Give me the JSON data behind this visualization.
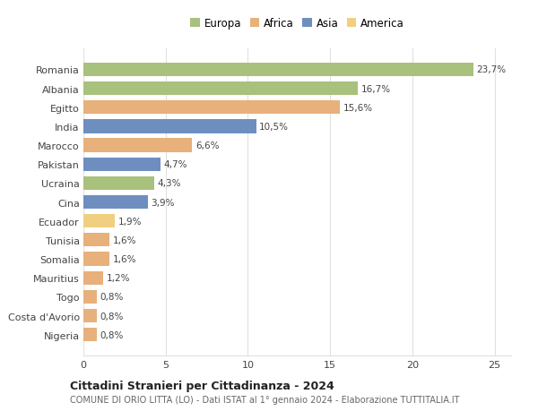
{
  "countries": [
    "Romania",
    "Albania",
    "Egitto",
    "India",
    "Marocco",
    "Pakistan",
    "Ucraina",
    "Cina",
    "Ecuador",
    "Tunisia",
    "Somalia",
    "Mauritius",
    "Togo",
    "Costa d'Avorio",
    "Nigeria"
  ],
  "values": [
    23.7,
    16.7,
    15.6,
    10.5,
    6.6,
    4.7,
    4.3,
    3.9,
    1.9,
    1.6,
    1.6,
    1.2,
    0.8,
    0.8,
    0.8
  ],
  "labels": [
    "23,7%",
    "16,7%",
    "15,6%",
    "10,5%",
    "6,6%",
    "4,7%",
    "4,3%",
    "3,9%",
    "1,9%",
    "1,6%",
    "1,6%",
    "1,2%",
    "0,8%",
    "0,8%",
    "0,8%"
  ],
  "colors": [
    "#a8c17c",
    "#a8c17c",
    "#e8b07a",
    "#6e8ec0",
    "#e8b07a",
    "#6e8ec0",
    "#a8c17c",
    "#6e8ec0",
    "#f0d080",
    "#e8b07a",
    "#e8b07a",
    "#e8b07a",
    "#e8b07a",
    "#e8b07a",
    "#e8b07a"
  ],
  "continent_colors": {
    "Europa": "#a8c17c",
    "Africa": "#e8b07a",
    "Asia": "#6e8ec0",
    "America": "#f0d080"
  },
  "title1": "Cittadini Stranieri per Cittadinanza - 2024",
  "title2": "COMUNE DI ORIO LITTA (LO) - Dati ISTAT al 1° gennaio 2024 - Elaborazione TUTTITALIA.IT",
  "xlim": [
    0,
    26
  ],
  "xticks": [
    0,
    5,
    10,
    15,
    20,
    25
  ],
  "bg_color": "#ffffff",
  "grid_color": "#e0e0e0"
}
